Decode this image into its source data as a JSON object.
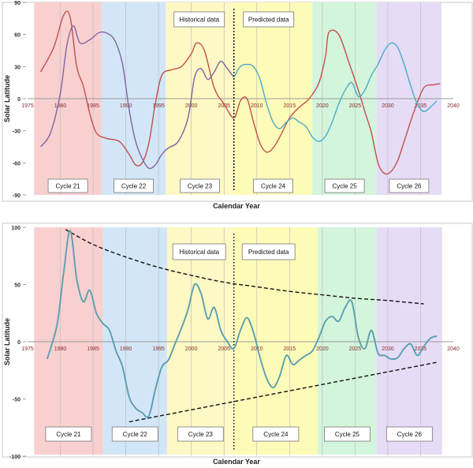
{
  "chart_data": [
    {
      "type": "line",
      "xlabel": "Calendar Year",
      "ylabel": "Solar Latitude",
      "xlim": [
        1975,
        2040
      ],
      "ylim": [
        -90,
        90
      ],
      "xticks": [
        1975,
        1980,
        1985,
        1990,
        1995,
        2000,
        2005,
        2010,
        2015,
        2020,
        2025,
        2030,
        2035,
        2040
      ],
      "yticks": [
        90,
        60,
        30,
        0,
        -30,
        -60,
        -90
      ],
      "grid": "vertical",
      "cycles": [
        {
          "label": "Cycle 21",
          "start": 1976.0,
          "end": 1986.3,
          "color": "#f8d0d0"
        },
        {
          "label": "Cycle 22",
          "start": 1986.3,
          "end": 1996.1,
          "color": "#d3e6f7"
        },
        {
          "label": "Cycle 23",
          "start": 1996.1,
          "end": 2006.5,
          "color": "#fdf8c4"
        },
        {
          "label": "Cycle 24",
          "start": 2006.5,
          "end": 2018.5,
          "color": "#fdfbb8"
        },
        {
          "label": "Cycle 25",
          "start": 2018.5,
          "end": 2028.3,
          "color": "#d3f5dc"
        },
        {
          "label": "Cycle 26",
          "start": 2028.3,
          "end": 2038.2,
          "color": "#e6dcf6"
        }
      ],
      "annotations": [
        "Historical data",
        "Predicted data"
      ],
      "divider_year": 2006.5,
      "series": [
        {
          "color": "#c0504d",
          "x": [
            1977,
            1979,
            1980.5,
            1981.5,
            1982.5,
            1983.5,
            1984.5,
            1985.5,
            1987,
            1989,
            1990.5,
            1991.5,
            1992.5,
            1993.5,
            1994.5,
            1995.5,
            1997,
            1998.5,
            2000,
            2000.8,
            2002,
            2003.5,
            2005,
            2006.5,
            2007.5,
            2008.5,
            2009.5,
            2010.5,
            2011.5,
            2012.5,
            2013.5,
            2015,
            2016.5,
            2018,
            2019.5,
            2020.5,
            2021,
            2022.5,
            2024,
            2025.5,
            2026.5,
            2027.5,
            2028.5,
            2029.5,
            2030.5,
            2031.5,
            2032.5,
            2034,
            2035.5,
            2037,
            2038
          ],
          "y": [
            25,
            48,
            78,
            76,
            30,
            12,
            -14,
            -32,
            -37,
            -40,
            -52,
            -62,
            -60,
            -42,
            -5,
            22,
            27,
            30,
            42,
            52,
            45,
            10,
            -5,
            -18,
            -2,
            0,
            -22,
            -42,
            -50,
            -46,
            -36,
            -18,
            -8,
            0,
            15,
            40,
            62,
            60,
            35,
            8,
            -12,
            -32,
            -60,
            -70,
            -68,
            -58,
            -40,
            -12,
            10,
            13,
            14
          ]
        },
        {
          "color": "#8064a2",
          "x": [
            1977,
            1978.5,
            1980,
            1981,
            1982,
            1983,
            1984.5,
            1986,
            1987.5,
            1988.5,
            1989.5,
            1990.5,
            1991.5,
            1992.5,
            1993.5,
            1994.5,
            1995.5,
            1996.5,
            1998,
            1999.5,
            2000.5,
            2001.5,
            2002.5,
            2003.5,
            2004.5,
            2005.5,
            2006.5
          ],
          "y": [
            -45,
            -32,
            5,
            50,
            68,
            52,
            55,
            62,
            60,
            52,
            32,
            -10,
            -40,
            -56,
            -65,
            -62,
            -52,
            -46,
            -40,
            -18,
            20,
            28,
            18,
            25,
            35,
            28,
            20
          ]
        },
        {
          "color": "#4bacc6",
          "x": [
            2006.5,
            2007.5,
            2008.5,
            2009.5,
            2010.5,
            2011.5,
            2012.5,
            2013.5,
            2014.5,
            2015.5,
            2016.5,
            2017.5,
            2018.5,
            2019.5,
            2020.5,
            2021.5,
            2022.5,
            2023.5,
            2024.5,
            2025.5,
            2026.5,
            2027.5,
            2028.5,
            2029.5,
            2030.5,
            2031.5,
            2032.5,
            2033.5,
            2034.5,
            2035.5,
            2036.5,
            2037.5
          ],
          "y": [
            20,
            30,
            32,
            30,
            18,
            -5,
            -22,
            -28,
            -22,
            -18,
            -22,
            -26,
            -36,
            -40,
            -35,
            -22,
            -5,
            8,
            15,
            2,
            8,
            22,
            32,
            45,
            52,
            48,
            32,
            12,
            -5,
            -12,
            -8,
            -2
          ]
        }
      ]
    },
    {
      "type": "line",
      "xlabel": "Calendar Year",
      "ylabel": "Solar Latitude",
      "xlim": [
        1975,
        2040
      ],
      "ylim": [
        -100,
        100
      ],
      "xticks": [
        1975,
        1980,
        1985,
        1990,
        1995,
        2000,
        2005,
        2010,
        2015,
        2020,
        2025,
        2030,
        2035,
        2040
      ],
      "yticks": [
        100,
        50,
        0,
        -50,
        -100
      ],
      "grid": "vertical",
      "cycles": [
        {
          "label": "Cycle 21",
          "start": 1976.0,
          "end": 1986.5,
          "color": "#f8d0d0"
        },
        {
          "label": "Cycle 22",
          "start": 1986.5,
          "end": 1996.3,
          "color": "#d3e6f7"
        },
        {
          "label": "Cycle 23",
          "start": 1996.3,
          "end": 2006.5,
          "color": "#fdf8c4"
        },
        {
          "label": "Cycle 24",
          "start": 2006.5,
          "end": 2019.3,
          "color": "#fdfbb8"
        },
        {
          "label": "Cycle 25",
          "start": 2019.3,
          "end": 2028.3,
          "color": "#d3f5dc"
        },
        {
          "label": "Cycle 26",
          "start": 2028.3,
          "end": 2038.3,
          "color": "#e6dcf6"
        }
      ],
      "annotations": [
        "Historical data",
        "Predicted data"
      ],
      "divider_year": 2006.5,
      "series": [
        {
          "color": "#5a9fb0",
          "x": [
            1978,
            1979.5,
            1980.5,
            1981.5,
            1982.5,
            1983.5,
            1984.5,
            1985.5,
            1986.5,
            1987.5,
            1988.5,
            1989.5,
            1990.5,
            1991.5,
            1992.5,
            1993.5,
            1994.5,
            1995.5,
            1996.5,
            1997.5,
            1998.5,
            1999.5,
            2000.5,
            2001.5,
            2002.5,
            2003.5,
            2004.5,
            2005.5,
            2006.5,
            2007.5,
            2008.5,
            2009.5,
            2010.5,
            2011.5,
            2012.5,
            2013.5,
            2014.5,
            2015.5,
            2016.5,
            2017.5,
            2018.5,
            2019.5,
            2020.5,
            2021.5,
            2022.5,
            2023.5,
            2024.5,
            2025.5,
            2026.5,
            2027.5,
            2028.5,
            2029.5,
            2030.5,
            2031.5,
            2032.5,
            2033.5,
            2034.5,
            2035.5,
            2036.5,
            2037.5
          ],
          "y": [
            -15,
            15,
            60,
            97,
            55,
            35,
            45,
            25,
            16,
            10,
            -8,
            -22,
            -48,
            -58,
            -62,
            -65,
            -42,
            -22,
            -16,
            -2,
            12,
            28,
            50,
            42,
            20,
            30,
            10,
            0,
            -6,
            10,
            21,
            8,
            -14,
            -32,
            -40,
            -30,
            -12,
            -20,
            -16,
            -12,
            -8,
            4,
            18,
            22,
            18,
            30,
            35,
            4,
            -6,
            10,
            -10,
            -12,
            -15,
            -14,
            -6,
            -2,
            -12,
            -4,
            3,
            5
          ]
        }
      ],
      "trendlines": [
        {
          "label": "upper envelope",
          "x": [
            1980.8,
            1985,
            1990,
            1995,
            2000,
            2005,
            2010,
            2015,
            2020,
            2025,
            2030,
            2035.5
          ],
          "y": [
            98,
            85,
            74,
            65,
            58,
            52,
            48,
            44,
            41,
            38,
            36,
            33
          ]
        },
        {
          "label": "lower envelope",
          "x": [
            1990.5,
            2037.5
          ],
          "y": [
            -70,
            -18
          ]
        }
      ]
    }
  ]
}
